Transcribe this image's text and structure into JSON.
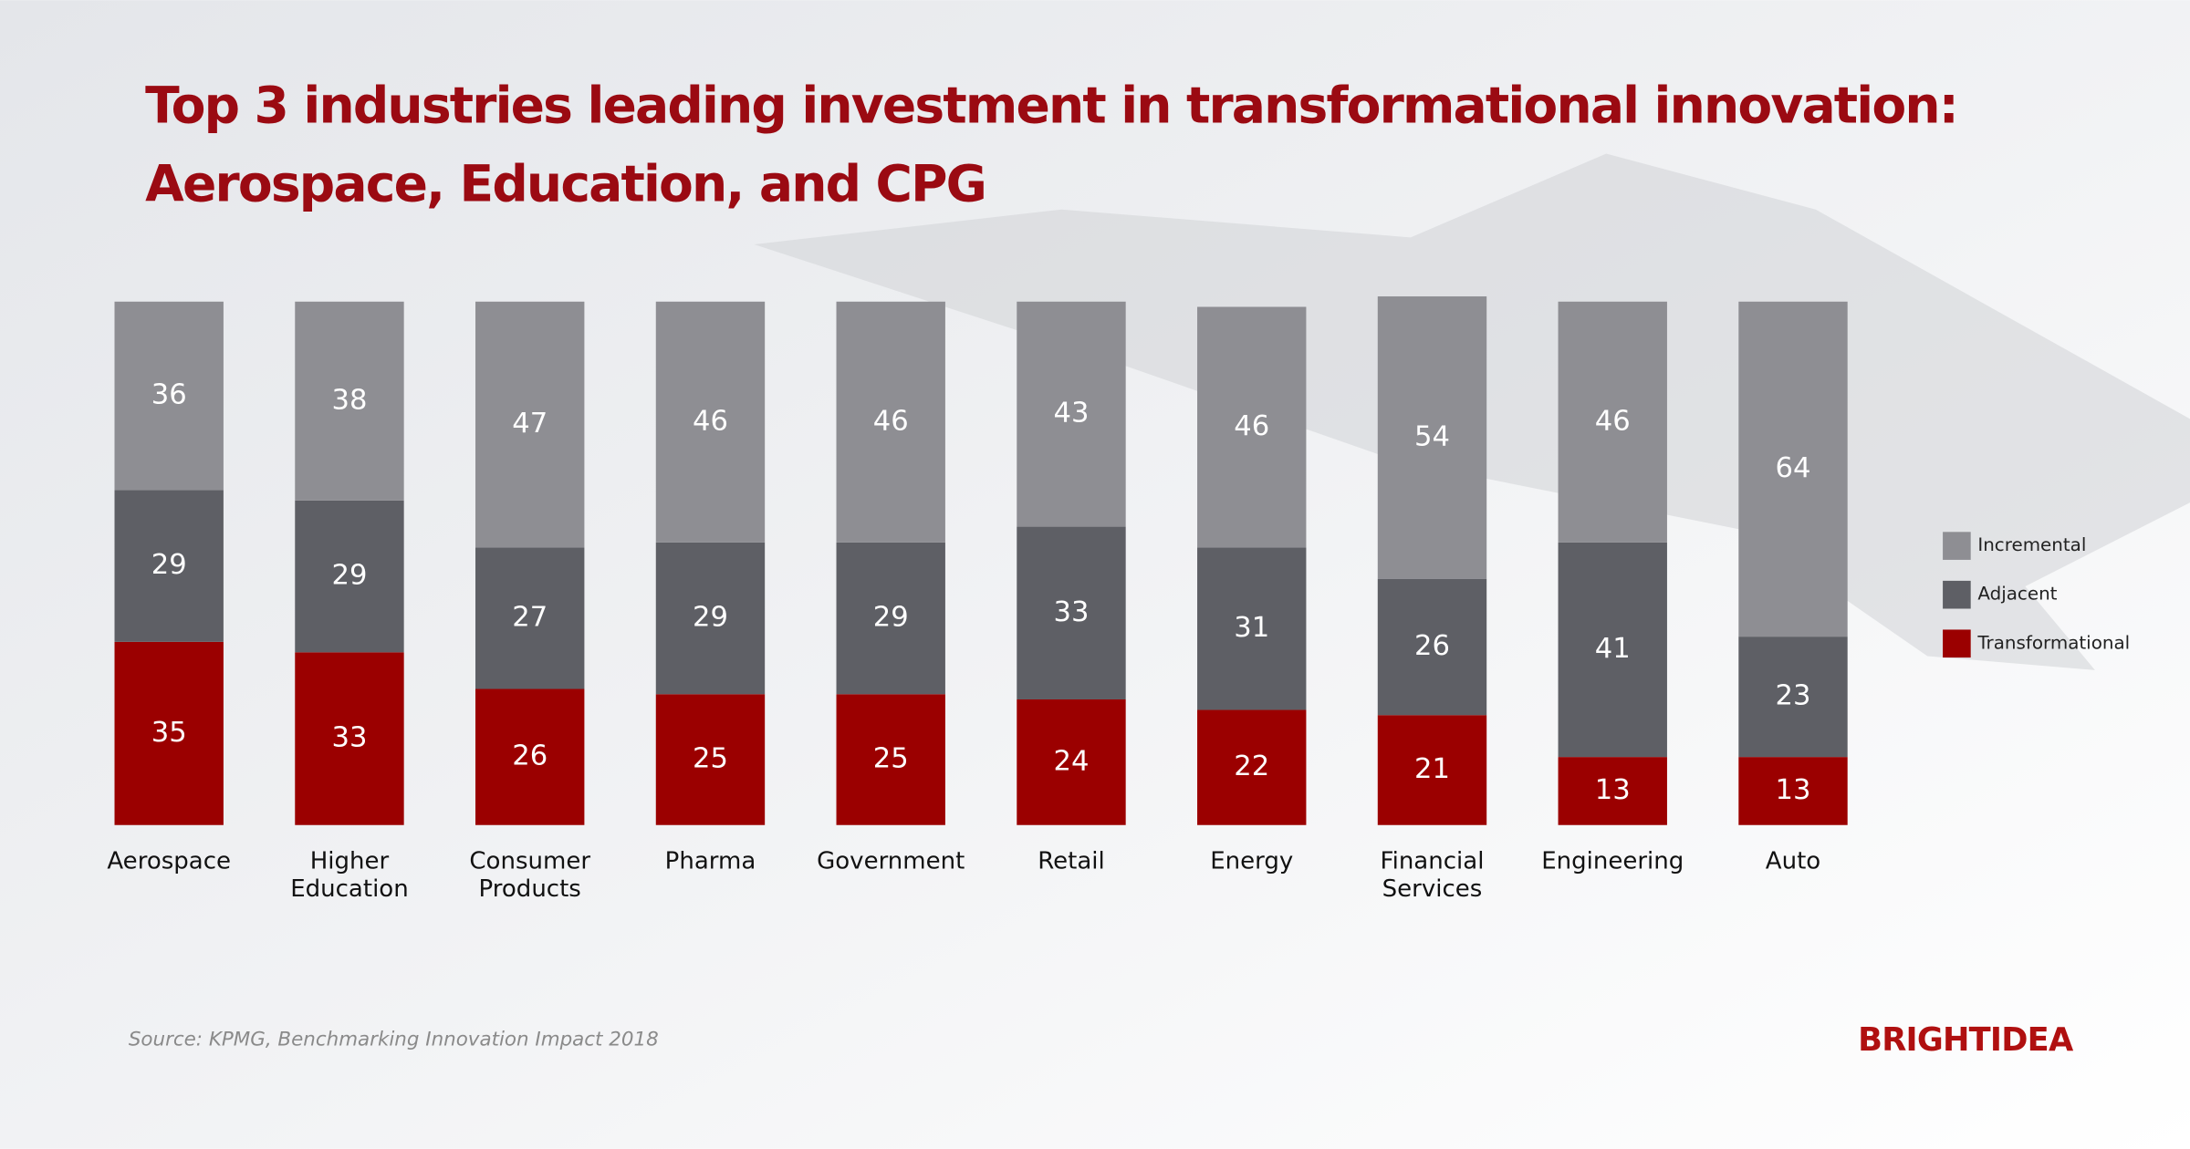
{
  "chart_data": {
    "type": "stacked_bar",
    "title": [
      "Top 3 industries leading investment in transformational innovation:",
      "Aerospace, Education, and CPG"
    ],
    "categories": [
      "Aerospace",
      "Higher Education",
      "Consumer Products",
      "Pharma",
      "Government",
      "Retail",
      "Energy",
      "Financial Services",
      "Engineering",
      "Auto"
    ],
    "series": [
      {
        "name": "Incremental",
        "color": "#8e8e93",
        "values": [
          36,
          38,
          47,
          46,
          46,
          43,
          46,
          54,
          46,
          64
        ]
      },
      {
        "name": "Adjacent",
        "color": "#5e5f65",
        "values": [
          29,
          29,
          27,
          29,
          29,
          33,
          31,
          26,
          41,
          23
        ]
      },
      {
        "name": "Transformational",
        "color": "#9b0000",
        "values": [
          35,
          33,
          26,
          25,
          25,
          24,
          22,
          21,
          13,
          13
        ]
      }
    ],
    "ylim": [
      0,
      100
    ],
    "legend": "right",
    "source": "Source: KPMG, Benchmarking Innovation Impact 2018",
    "logo": "BRIGHTIDEA"
  }
}
